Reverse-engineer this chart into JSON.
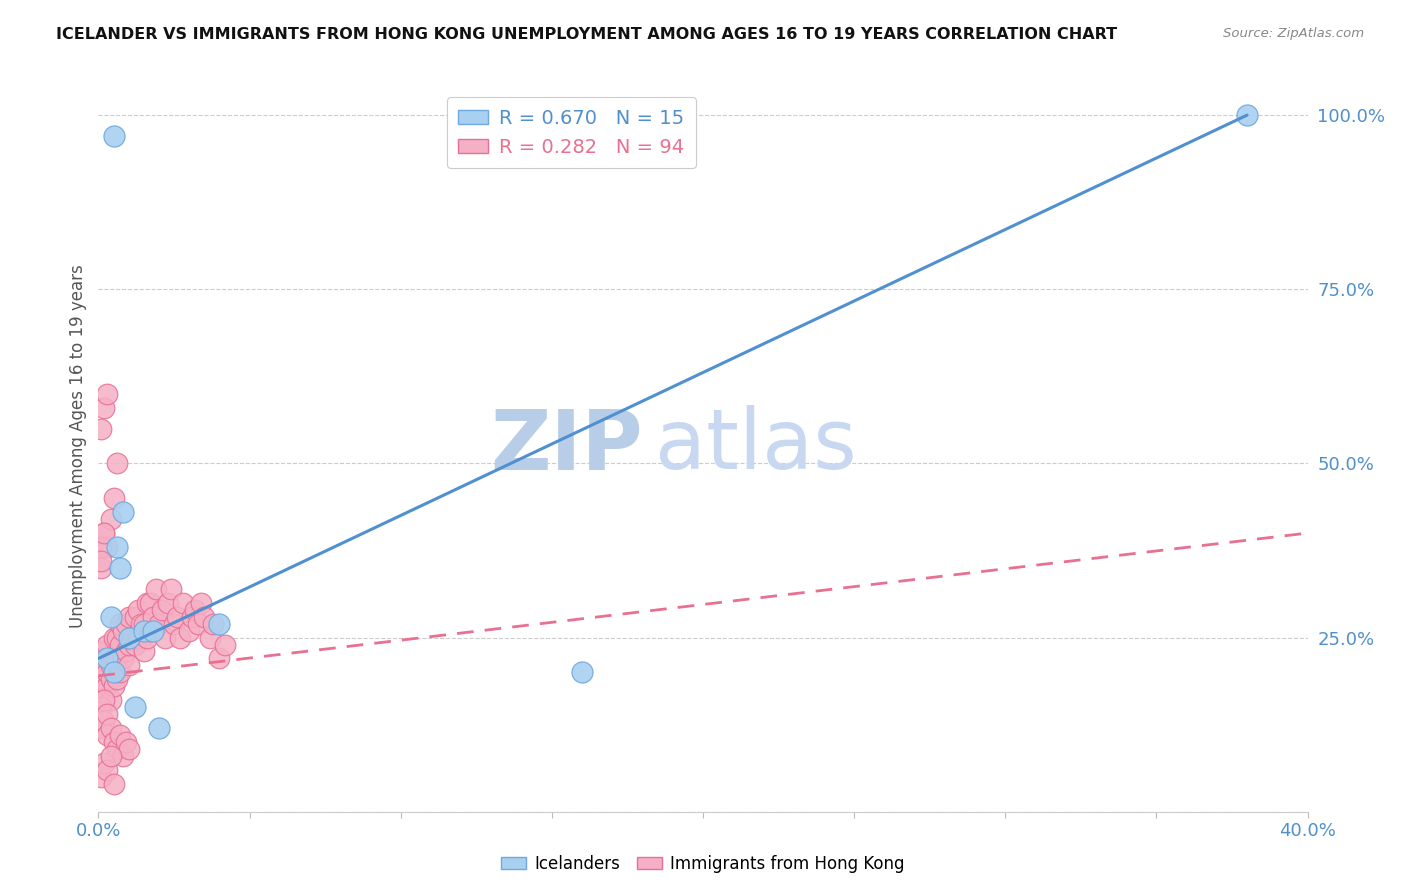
{
  "title": "ICELANDER VS IMMIGRANTS FROM HONG KONG UNEMPLOYMENT AMONG AGES 16 TO 19 YEARS CORRELATION CHART",
  "source": "Source: ZipAtlas.com",
  "ylabel": "Unemployment Among Ages 16 to 19 years",
  "icelanders_color": "#a8d0f0",
  "immigrants_color": "#f5b0c5",
  "icelanders_edge_color": "#70a8e0",
  "immigrants_edge_color": "#e87095",
  "blue_line_color": "#5090d0",
  "pink_line_color": "#e87090",
  "grid_color": "#cccccc",
  "watermark_color": "#ccddf5",
  "legend_R_icelanders": "R = 0.670",
  "legend_N_icelanders": "N = 15",
  "legend_R_immigrants": "R = 0.282",
  "legend_N_immigrants": "N = 94",
  "legend_label_icelanders": "Icelanders",
  "legend_label_immigrants": "Immigrants from Hong Kong",
  "icelanders_x": [
    0.003,
    0.004,
    0.005,
    0.006,
    0.007,
    0.008,
    0.01,
    0.012,
    0.015,
    0.018,
    0.02,
    0.04,
    0.16,
    0.38,
    0.005
  ],
  "icelanders_y": [
    0.22,
    0.28,
    0.2,
    0.38,
    0.35,
    0.43,
    0.25,
    0.15,
    0.26,
    0.26,
    0.12,
    0.27,
    0.2,
    1.0,
    0.97
  ],
  "immigrants_x": [
    0.001,
    0.001,
    0.001,
    0.002,
    0.002,
    0.002,
    0.002,
    0.003,
    0.003,
    0.003,
    0.003,
    0.004,
    0.004,
    0.004,
    0.005,
    0.005,
    0.005,
    0.005,
    0.006,
    0.006,
    0.006,
    0.007,
    0.007,
    0.007,
    0.008,
    0.008,
    0.009,
    0.009,
    0.01,
    0.01,
    0.01,
    0.011,
    0.012,
    0.012,
    0.013,
    0.013,
    0.014,
    0.015,
    0.015,
    0.016,
    0.016,
    0.017,
    0.017,
    0.018,
    0.019,
    0.02,
    0.021,
    0.022,
    0.023,
    0.024,
    0.025,
    0.026,
    0.027,
    0.028,
    0.03,
    0.031,
    0.032,
    0.033,
    0.034,
    0.035,
    0.037,
    0.038,
    0.04,
    0.042,
    0.001,
    0.001,
    0.002,
    0.002,
    0.003,
    0.003,
    0.004,
    0.005,
    0.006,
    0.007,
    0.008,
    0.009,
    0.01,
    0.001,
    0.002,
    0.003,
    0.004,
    0.005,
    0.006,
    0.001,
    0.002,
    0.003,
    0.004,
    0.005,
    0.001,
    0.002,
    0.003,
    0.001,
    0.002,
    0.001
  ],
  "immigrants_y": [
    0.18,
    0.2,
    0.22,
    0.17,
    0.19,
    0.21,
    0.23,
    0.18,
    0.2,
    0.22,
    0.24,
    0.16,
    0.19,
    0.21,
    0.18,
    0.2,
    0.22,
    0.25,
    0.19,
    0.22,
    0.25,
    0.2,
    0.24,
    0.27,
    0.22,
    0.26,
    0.23,
    0.27,
    0.21,
    0.24,
    0.28,
    0.25,
    0.24,
    0.28,
    0.25,
    0.29,
    0.27,
    0.23,
    0.27,
    0.25,
    0.3,
    0.26,
    0.3,
    0.28,
    0.32,
    0.27,
    0.29,
    0.25,
    0.3,
    0.32,
    0.27,
    0.28,
    0.25,
    0.3,
    0.26,
    0.28,
    0.29,
    0.27,
    0.3,
    0.28,
    0.25,
    0.27,
    0.22,
    0.24,
    0.12,
    0.15,
    0.13,
    0.16,
    0.11,
    0.14,
    0.12,
    0.1,
    0.09,
    0.11,
    0.08,
    0.1,
    0.09,
    0.35,
    0.4,
    0.38,
    0.42,
    0.45,
    0.5,
    0.05,
    0.07,
    0.06,
    0.08,
    0.04,
    0.55,
    0.58,
    0.6,
    0.38,
    0.4,
    0.36
  ],
  "blue_line_x": [
    0.0,
    0.38
  ],
  "blue_line_y": [
    0.22,
    1.0
  ],
  "pink_line_x": [
    0.0,
    0.4
  ],
  "pink_line_y": [
    0.195,
    0.4
  ],
  "xlim": [
    0.0,
    0.4
  ],
  "ylim": [
    0.0,
    1.05
  ],
  "x_ticks": [
    0.0,
    0.05,
    0.1,
    0.15,
    0.2,
    0.25,
    0.3,
    0.35,
    0.4
  ],
  "x_tick_labels_left": "0.0%",
  "x_tick_labels_right": "40.0%",
  "y_tick_labels": [
    "25.0%",
    "50.0%",
    "75.0%",
    "100.0%"
  ],
  "y_tick_vals": [
    0.25,
    0.5,
    0.75,
    1.0
  ]
}
